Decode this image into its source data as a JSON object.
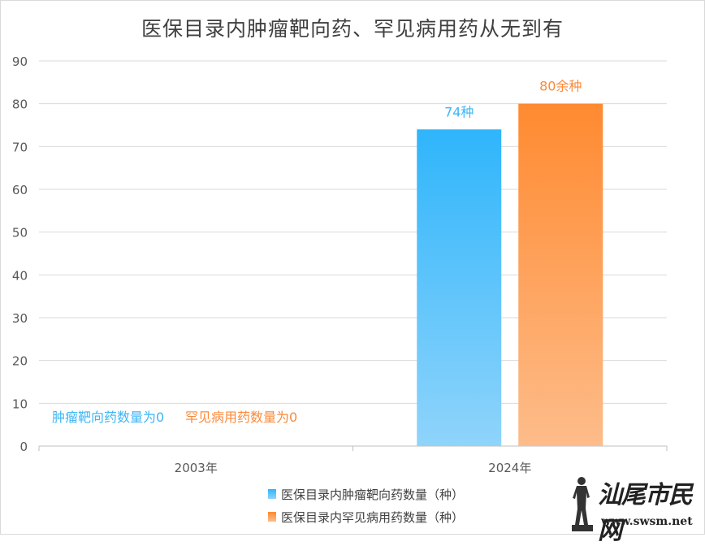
{
  "chart_data": {
    "type": "bar",
    "title": "医保目录内肿瘤靶向药、罕见病用药从无到有",
    "categories": [
      "2003年",
      "2024年"
    ],
    "series": [
      {
        "name": "医保目录内肿瘤靶向药数量（种）",
        "values": [
          0,
          74
        ],
        "color": "#3cb6f5"
      },
      {
        "name": "医保目录内罕见病用药数量（种）",
        "values": [
          0,
          80
        ],
        "color": "#fb8a3a"
      }
    ],
    "data_labels": [
      [
        "肿瘤靶向药数量为0",
        "74种"
      ],
      [
        "罕见病用药数量为0",
        "80余种"
      ]
    ],
    "ylim": [
      0,
      90
    ],
    "yticks": [
      0,
      10,
      20,
      30,
      40,
      50,
      60,
      70,
      80,
      90
    ],
    "grid": true,
    "legend": "bottom"
  },
  "watermark": {
    "text": "汕尾市民网",
    "url": "www.swsm.net"
  }
}
